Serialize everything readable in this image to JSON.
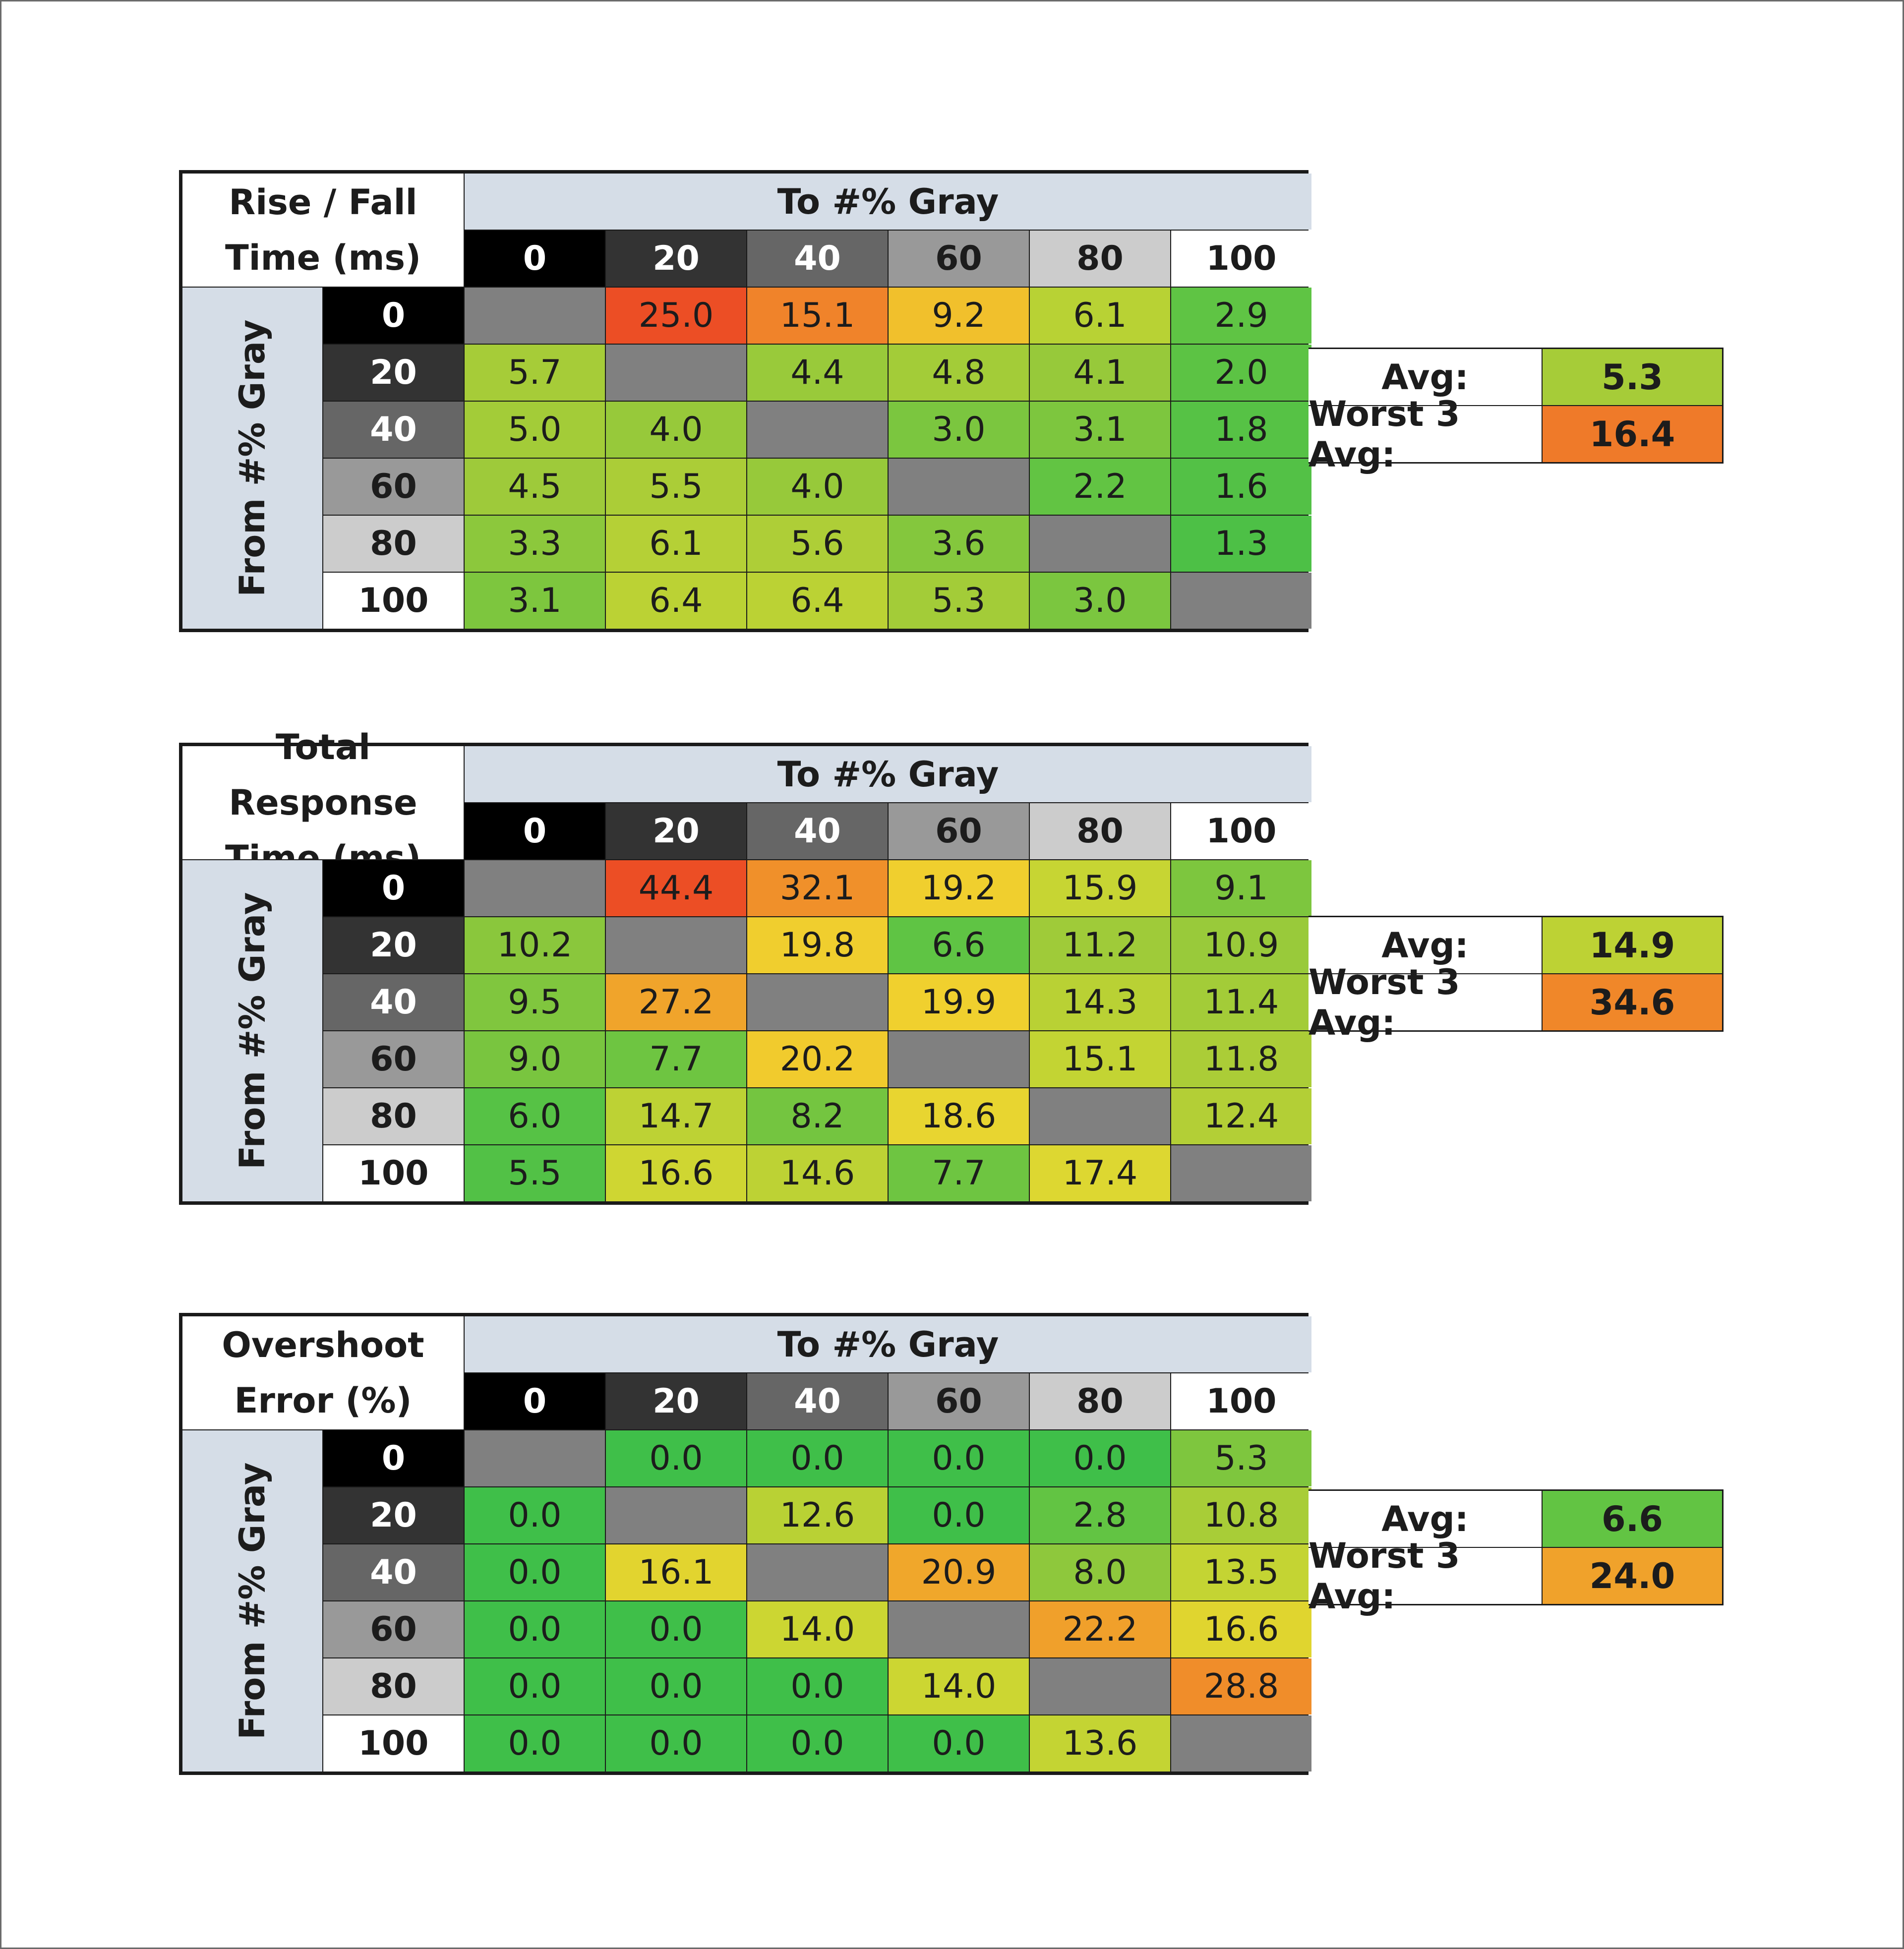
{
  "tables": [
    {
      "title_line1": "Rise / Fall",
      "title_line2": "Time (ms)",
      "to_label": "To #% Gray",
      "from_label": "From #% Gray",
      "col_levels": [
        "0",
        "20",
        "40",
        "60",
        "80",
        "100"
      ],
      "row_levels": [
        "0",
        "20",
        "40",
        "60",
        "80",
        "100"
      ],
      "values": [
        [
          "",
          "25.0",
          "15.1",
          "9.2",
          "6.1",
          "2.9"
        ],
        [
          "5.7",
          "",
          "4.4",
          "4.8",
          "4.1",
          "2.0"
        ],
        [
          "5.0",
          "4.0",
          "",
          "3.0",
          "3.1",
          "1.8"
        ],
        [
          "4.5",
          "5.5",
          "4.0",
          "",
          "2.2",
          "1.6"
        ],
        [
          "3.3",
          "6.1",
          "5.6",
          "3.6",
          "",
          "1.3"
        ],
        [
          "3.1",
          "6.4",
          "6.4",
          "5.3",
          "3.0",
          ""
        ]
      ],
      "colors": [
        [
          "#808080",
          "#ec4e25",
          "#f0832a",
          "#f1c02c",
          "#b8d234",
          "#5fc444"
        ],
        [
          "#a6cc38",
          "#808080",
          "#99ca3a",
          "#a3cc38",
          "#97c93a",
          "#5cc344"
        ],
        [
          "#a3cc38",
          "#97c93a",
          "#808080",
          "#7bc63f",
          "#7dc63e",
          "#56c245"
        ],
        [
          "#9eca3a",
          "#abcd37",
          "#97c93a",
          "#808080",
          "#62c443",
          "#53c146"
        ],
        [
          "#8cc83c",
          "#b5d036",
          "#aece37",
          "#84c73d",
          "#808080",
          "#4dc046"
        ],
        [
          "#7dc63e",
          "#bbd234",
          "#bbd234",
          "#a3cc38",
          "#7bc63f",
          "#808080"
        ]
      ],
      "avg_label": "Avg:",
      "avg_value": "5.3",
      "avg_color": "#a6cc38",
      "worst_label": "Worst 3 Avg:",
      "worst_value": "16.4",
      "worst_color": "#ef7a29"
    },
    {
      "title_line1": "Total Response",
      "title_line2": "Time (ms)",
      "to_label": "To #% Gray",
      "from_label": "From #% Gray",
      "col_levels": [
        "0",
        "20",
        "40",
        "60",
        "80",
        "100"
      ],
      "row_levels": [
        "0",
        "20",
        "40",
        "60",
        "80",
        "100"
      ],
      "values": [
        [
          "",
          "44.4",
          "32.1",
          "19.2",
          "15.9",
          "9.1"
        ],
        [
          "10.2",
          "",
          "19.8",
          "6.6",
          "11.2",
          "10.9"
        ],
        [
          "9.5",
          "27.2",
          "",
          "19.9",
          "14.3",
          "11.4"
        ],
        [
          "9.0",
          "7.7",
          "20.2",
          "",
          "15.1",
          "11.8"
        ],
        [
          "6.0",
          "14.7",
          "8.2",
          "18.6",
          "",
          "12.4"
        ],
        [
          "5.5",
          "16.6",
          "14.6",
          "7.7",
          "17.4",
          ""
        ]
      ],
      "colors": [
        [
          "#808080",
          "#ec4e25",
          "#f0902a",
          "#f0cf2e",
          "#c7d533",
          "#7dc63e"
        ],
        [
          "#8ac73c",
          "#808080",
          "#f0ce2e",
          "#5fc444",
          "#9fcb39",
          "#99ca3a"
        ],
        [
          "#80c63e",
          "#f0a42b",
          "#808080",
          "#f0d02e",
          "#b9d134",
          "#a3cc38"
        ],
        [
          "#79c53f",
          "#6ec541",
          "#f1cb2d",
          "#808080",
          "#c3d433",
          "#abcd37"
        ],
        [
          "#56c245",
          "#bdd234",
          "#74c540",
          "#e8d530",
          "#808080",
          "#b3cf36"
        ],
        [
          "#52c146",
          "#cfd632",
          "#bdd234",
          "#6ec541",
          "#ddd731",
          "#808080"
        ]
      ],
      "avg_label": "Avg:",
      "avg_value": "14.9",
      "avg_color": "#bdd234",
      "worst_label": "Worst 3 Avg:",
      "worst_value": "34.6",
      "worst_color": "#f08729"
    },
    {
      "title_line1": "Overshoot",
      "title_line2": "Error (%)",
      "to_label": "To #% Gray",
      "from_label": "From #% Gray",
      "col_levels": [
        "0",
        "20",
        "40",
        "60",
        "80",
        "100"
      ],
      "row_levels": [
        "0",
        "20",
        "40",
        "60",
        "80",
        "100"
      ],
      "values": [
        [
          "",
          "0.0",
          "0.0",
          "0.0",
          "0.0",
          "5.3"
        ],
        [
          "0.0",
          "",
          "12.6",
          "0.0",
          "2.8",
          "10.8"
        ],
        [
          "0.0",
          "16.1",
          "",
          "20.9",
          "8.0",
          "13.5"
        ],
        [
          "0.0",
          "0.0",
          "14.0",
          "",
          "22.2",
          "16.6"
        ],
        [
          "0.0",
          "0.0",
          "0.0",
          "14.0",
          "",
          "28.8"
        ],
        [
          "0.0",
          "0.0",
          "0.0",
          "0.0",
          "13.6",
          ""
        ]
      ],
      "colors": [
        [
          "#808080",
          "#3fbf49",
          "#3fbf49",
          "#3fbf49",
          "#3fbf49",
          "#7ec63e"
        ],
        [
          "#3fbf49",
          "#808080",
          "#b9d134",
          "#3fbf49",
          "#62c443",
          "#a8cd37"
        ],
        [
          "#3fbf49",
          "#e2d42f",
          "#808080",
          "#f0a72b",
          "#8ec83c",
          "#c4d433"
        ],
        [
          "#3fbf49",
          "#3fbf49",
          "#ccd632",
          "#808080",
          "#f0a02b",
          "#e0d52f"
        ],
        [
          "#3fbf49",
          "#3fbf49",
          "#3fbf49",
          "#ccd632",
          "#808080",
          "#f08d2a"
        ],
        [
          "#3fbf49",
          "#3fbf49",
          "#3fbf49",
          "#3fbf49",
          "#c4d433",
          "#808080"
        ]
      ],
      "avg_label": "Avg:",
      "avg_value": "6.6",
      "avg_color": "#62c443",
      "worst_label": "Worst 3 Avg:",
      "worst_value": "24.0",
      "worst_color": "#f0a22b"
    }
  ],
  "level_styles": {
    "0": {
      "bg": "#000000",
      "fg": "#ffffff"
    },
    "20": {
      "bg": "#333333",
      "fg": "#ffffff"
    },
    "40": {
      "bg": "#666666",
      "fg": "#ffffff"
    },
    "60": {
      "bg": "#999999",
      "fg": "#1c1c1c"
    },
    "80": {
      "bg": "#cccccc",
      "fg": "#1c1c1c"
    },
    "100": {
      "bg": "#ffffff",
      "fg": "#1c1c1c"
    }
  },
  "chart_data": [
    {
      "type": "table",
      "title": "Rise / Fall Time (ms)",
      "xlabel": "To #% Gray",
      "ylabel": "From #% Gray",
      "columns": [
        "0",
        "20",
        "40",
        "60",
        "80",
        "100"
      ],
      "rows": [
        "0",
        "20",
        "40",
        "60",
        "80",
        "100"
      ],
      "values": [
        [
          null,
          25.0,
          15.1,
          9.2,
          6.1,
          2.9
        ],
        [
          5.7,
          null,
          4.4,
          4.8,
          4.1,
          2.0
        ],
        [
          5.0,
          4.0,
          null,
          3.0,
          3.1,
          1.8
        ],
        [
          4.5,
          5.5,
          4.0,
          null,
          2.2,
          1.6
        ],
        [
          3.3,
          6.1,
          5.6,
          3.6,
          null,
          1.3
        ],
        [
          3.1,
          6.4,
          6.4,
          5.3,
          3.0,
          null
        ]
      ],
      "summary": {
        "Avg:": 5.3,
        "Worst 3 Avg:": 16.4
      }
    },
    {
      "type": "table",
      "title": "Total Response Time (ms)",
      "xlabel": "To #% Gray",
      "ylabel": "From #% Gray",
      "columns": [
        "0",
        "20",
        "40",
        "60",
        "80",
        "100"
      ],
      "rows": [
        "0",
        "20",
        "40",
        "60",
        "80",
        "100"
      ],
      "values": [
        [
          null,
          44.4,
          32.1,
          19.2,
          15.9,
          9.1
        ],
        [
          10.2,
          null,
          19.8,
          6.6,
          11.2,
          10.9
        ],
        [
          9.5,
          27.2,
          null,
          19.9,
          14.3,
          11.4
        ],
        [
          9.0,
          7.7,
          20.2,
          null,
          15.1,
          11.8
        ],
        [
          6.0,
          14.7,
          8.2,
          18.6,
          null,
          12.4
        ],
        [
          5.5,
          16.6,
          14.6,
          7.7,
          17.4,
          null
        ]
      ],
      "summary": {
        "Avg:": 14.9,
        "Worst 3 Avg:": 34.6
      }
    },
    {
      "type": "table",
      "title": "Overshoot Error (%)",
      "xlabel": "To #% Gray",
      "ylabel": "From #% Gray",
      "columns": [
        "0",
        "20",
        "40",
        "60",
        "80",
        "100"
      ],
      "rows": [
        "0",
        "20",
        "40",
        "60",
        "80",
        "100"
      ],
      "values": [
        [
          null,
          0.0,
          0.0,
          0.0,
          0.0,
          5.3
        ],
        [
          0.0,
          null,
          12.6,
          0.0,
          2.8,
          10.8
        ],
        [
          0.0,
          16.1,
          null,
          20.9,
          8.0,
          13.5
        ],
        [
          0.0,
          0.0,
          14.0,
          null,
          22.2,
          16.6
        ],
        [
          0.0,
          0.0,
          0.0,
          14.0,
          null,
          28.8
        ],
        [
          0.0,
          0.0,
          0.0,
          0.0,
          13.6,
          null
        ]
      ],
      "summary": {
        "Avg:": 6.6,
        "Worst 3 Avg:": 24.0
      }
    }
  ]
}
